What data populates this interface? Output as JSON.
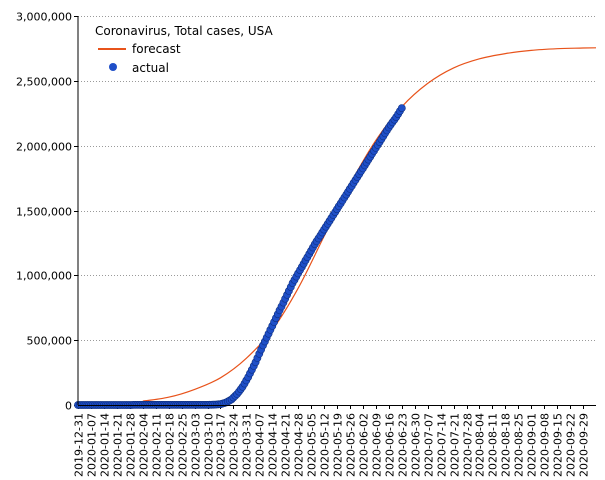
{
  "chart_data": {
    "type": "line",
    "title": "Coronavirus, Total cases, USA",
    "legend_position": "top-left",
    "grid": {
      "horizontal": true,
      "vertical": false,
      "style": "dotted"
    },
    "x_axis": {
      "type": "date",
      "range": [
        "2019-12-31",
        "2020-10-06"
      ],
      "tick_labels": [
        "2019-12-31",
        "2020-01-07",
        "2020-01-14",
        "2020-01-21",
        "2020-01-28",
        "2020-02-04",
        "2020-02-11",
        "2020-02-18",
        "2020-02-25",
        "2020-03-03",
        "2020-03-10",
        "2020-03-17",
        "2020-03-24",
        "2020-03-31",
        "2020-04-07",
        "2020-04-14",
        "2020-04-21",
        "2020-04-28",
        "2020-05-05",
        "2020-05-12",
        "2020-05-19",
        "2020-05-26",
        "2020-06-02",
        "2020-06-09",
        "2020-06-16",
        "2020-06-23",
        "2020-06-30",
        "2020-07-07",
        "2020-07-14",
        "2020-07-21",
        "2020-07-28",
        "2020-08-04",
        "2020-08-11",
        "2020-08-18",
        "2020-08-25",
        "2020-09-01",
        "2020-09-08",
        "2020-09-15",
        "2020-09-22",
        "2020-09-29"
      ]
    },
    "y_axis": {
      "range": [
        0,
        3000000
      ],
      "ticks": [
        0,
        500000,
        1000000,
        1500000,
        2000000,
        2500000,
        3000000
      ],
      "tick_labels": [
        "0",
        "500,000",
        "1,000,000",
        "1,500,000",
        "2,000,000",
        "2,500,000",
        "3,000,000"
      ]
    },
    "series": [
      {
        "name": "forecast",
        "kind": "line",
        "color": "#e8531b",
        "points": [
          [
            "2020-02-04",
            30000
          ],
          [
            "2020-02-18",
            60000
          ],
          [
            "2020-03-03",
            120000
          ],
          [
            "2020-03-17",
            210000
          ],
          [
            "2020-03-31",
            360000
          ],
          [
            "2020-04-14",
            580000
          ],
          [
            "2020-04-28",
            900000
          ],
          [
            "2020-05-12",
            1300000
          ],
          [
            "2020-05-26",
            1700000
          ],
          [
            "2020-06-09",
            2040000
          ],
          [
            "2020-06-23",
            2300000
          ],
          [
            "2020-07-07",
            2480000
          ],
          [
            "2020-07-21",
            2600000
          ],
          [
            "2020-08-04",
            2670000
          ],
          [
            "2020-08-18",
            2710000
          ],
          [
            "2020-09-01",
            2735000
          ],
          [
            "2020-09-15",
            2748000
          ],
          [
            "2020-09-29",
            2753000
          ],
          [
            "2020-10-06",
            2755000
          ]
        ]
      },
      {
        "name": "actual",
        "kind": "scatter",
        "color": "#1f4fc8",
        "points": [
          [
            "2019-12-31",
            0
          ],
          [
            "2020-03-10",
            900
          ],
          [
            "2020-03-14",
            2700
          ],
          [
            "2020-03-17",
            6500
          ],
          [
            "2020-03-20",
            19000
          ],
          [
            "2020-03-23",
            43000
          ],
          [
            "2020-03-26",
            85000
          ],
          [
            "2020-03-29",
            140000
          ],
          [
            "2020-04-01",
            215000
          ],
          [
            "2020-04-05",
            330000
          ],
          [
            "2020-04-09",
            460000
          ],
          [
            "2020-04-13",
            580000
          ],
          [
            "2020-04-17",
            700000
          ],
          [
            "2020-04-21",
            820000
          ],
          [
            "2020-04-25",
            940000
          ],
          [
            "2020-04-29",
            1040000
          ],
          [
            "2020-05-03",
            1140000
          ],
          [
            "2020-05-07",
            1240000
          ],
          [
            "2020-05-11",
            1330000
          ],
          [
            "2020-05-15",
            1420000
          ],
          [
            "2020-05-19",
            1510000
          ],
          [
            "2020-05-23",
            1600000
          ],
          [
            "2020-05-27",
            1690000
          ],
          [
            "2020-05-31",
            1780000
          ],
          [
            "2020-06-04",
            1870000
          ],
          [
            "2020-06-08",
            1960000
          ],
          [
            "2020-06-12",
            2050000
          ],
          [
            "2020-06-16",
            2140000
          ],
          [
            "2020-06-20",
            2220000
          ],
          [
            "2020-06-23",
            2290000
          ]
        ]
      }
    ]
  }
}
